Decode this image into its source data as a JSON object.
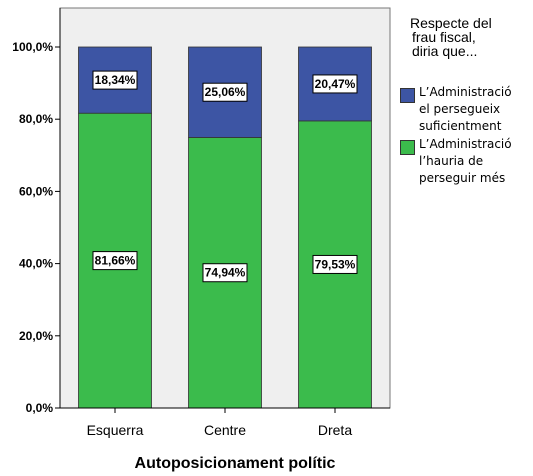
{
  "chart_data": {
    "type": "bar",
    "stacked": true,
    "percent": true,
    "categories": [
      "Esquerra",
      "Centre",
      "Dreta"
    ],
    "xlabel": "Autoposicionament polític",
    "ylabel": "",
    "ylim": [
      0,
      100
    ],
    "yticks": [
      "0,0%",
      "20,0%",
      "40,0%",
      "60,0%",
      "80,0%",
      "100,0%"
    ],
    "grid": false,
    "legend_position": "right",
    "legend_title": [
      "Respecte del",
      "frau fiscal,",
      "diria que..."
    ],
    "series": [
      {
        "name": "L'Administració l'hauria de perseguir més",
        "name_lines": [
          "L’Administració",
          "l’hauria de",
          "perseguir més"
        ],
        "color": "#3bbb4c",
        "values": [
          81.66,
          74.94,
          79.53
        ],
        "labels": [
          "81,66%",
          "74,94%",
          "79,53%"
        ]
      },
      {
        "name": "L'Administració el persegueix suficientment",
        "name_lines": [
          "L’Administració",
          "el persegueix",
          "suficientment"
        ],
        "color": "#3d55a4",
        "values": [
          18.34,
          25.06,
          20.47
        ],
        "labels": [
          "18,34%",
          "25,06%",
          "20,47%"
        ]
      }
    ],
    "plot_background": "#efefef"
  }
}
